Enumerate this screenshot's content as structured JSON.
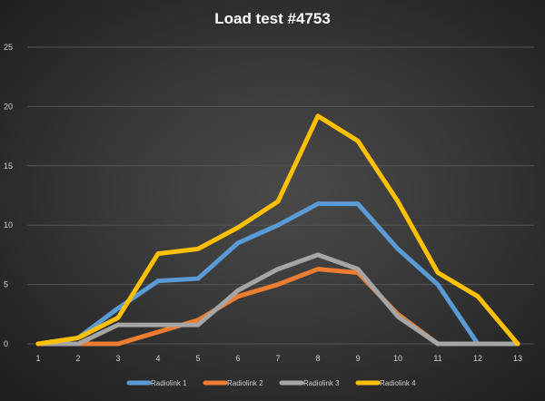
{
  "chart_data": {
    "type": "line",
    "title": "Load test #4753",
    "x": [
      1,
      2,
      3,
      4,
      5,
      6,
      7,
      8,
      9,
      10,
      11,
      12,
      13
    ],
    "ylim": [
      0,
      25
    ],
    "yticks": [
      0,
      5,
      10,
      15,
      20,
      25
    ],
    "grid": true,
    "legend_position": "bottom",
    "series": [
      {
        "name": "Radiolink 1",
        "color": "#5b9bd5",
        "values": [
          0,
          0.5,
          3,
          5.3,
          5.5,
          8.5,
          10,
          11.8,
          11.8,
          8,
          5,
          0,
          0
        ]
      },
      {
        "name": "Radiolink 2",
        "color": "#ed7d31",
        "values": [
          0,
          0,
          0,
          1,
          2,
          4,
          5,
          6.3,
          6,
          2.5,
          0,
          0,
          0
        ]
      },
      {
        "name": "Radiolink 3",
        "color": "#a5a5a5",
        "values": [
          0,
          0,
          1.6,
          1.6,
          1.6,
          4.5,
          6.3,
          7.5,
          6.3,
          2.3,
          0,
          0,
          0
        ]
      },
      {
        "name": "Radiolink 4",
        "color": "#ffc000",
        "values": [
          0,
          0.5,
          2.2,
          7.6,
          8,
          9.8,
          12,
          19.2,
          17.1,
          12,
          6,
          4,
          0
        ]
      }
    ]
  }
}
